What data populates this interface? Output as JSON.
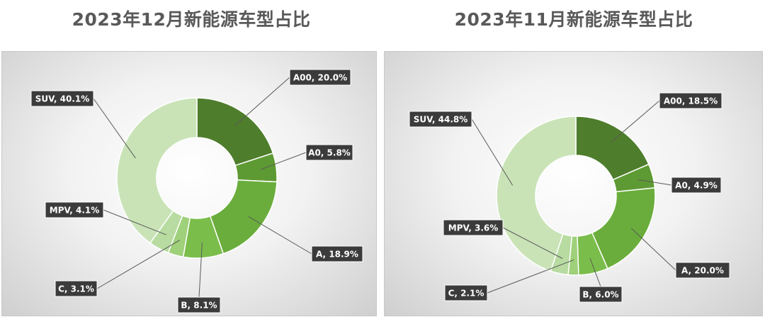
{
  "chart_data": [
    {
      "type": "pie",
      "donut": true,
      "title": "2023年12月新能源车型占比",
      "categories": [
        "A00",
        "A0",
        "A",
        "B",
        "C",
        "MPV",
        "SUV"
      ],
      "values": [
        20.0,
        5.8,
        18.9,
        8.1,
        3.1,
        4.1,
        40.1
      ],
      "labels": [
        "A00, 20.0%",
        "A0, 5.8%",
        "A, 18.9%",
        "B, 8.1%",
        "C, 3.1%",
        "MPV, 4.1%",
        "SUV, 40.1%"
      ],
      "colors": [
        "#4e7d2c",
        "#5e9a33",
        "#6aad3c",
        "#7bbd4b",
        "#9fd07a",
        "#b7dba0",
        "#c9e3b7"
      ],
      "unit": "%"
    },
    {
      "type": "pie",
      "donut": true,
      "title": "2023年11月新能源车型占比",
      "categories": [
        "A00",
        "A0",
        "A",
        "B",
        "C",
        "MPV",
        "SUV"
      ],
      "values": [
        18.5,
        4.9,
        20.0,
        6.0,
        2.1,
        3.6,
        44.8
      ],
      "labels": [
        "A00, 18.5%",
        "A0, 4.9%",
        "A, 20.0%",
        "B, 6.0%",
        "C, 2.1%",
        "MPV, 3.6%",
        "SUV, 44.8%"
      ],
      "colors": [
        "#4e7d2c",
        "#5e9a33",
        "#6aad3c",
        "#7bbd4b",
        "#9fd07a",
        "#b7dba0",
        "#c9e3b7"
      ],
      "unit": "%"
    }
  ]
}
